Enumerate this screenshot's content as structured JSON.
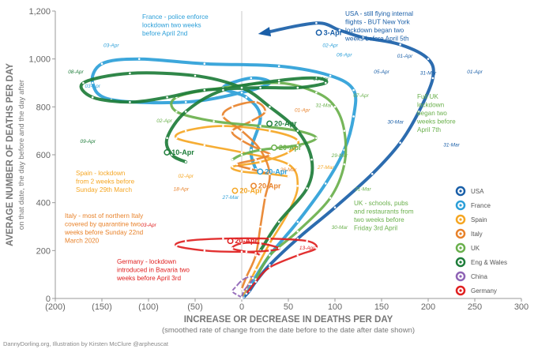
{
  "chart_data": {
    "type": "line",
    "title": "",
    "xlabel": "INCREASE OR DECREASE IN DEATHS PER DAY",
    "xlabel_sub": "(smoothed rate of change from the date before to the date after date shown)",
    "ylabel": "AVERAGE NUMBER OF DEATHS PER DAY",
    "ylabel_sub": "on that date, the day before and the day after",
    "xlim": [
      -200,
      300
    ],
    "ylim": [
      0,
      1200
    ],
    "x_ticks": [
      "(200)",
      "(150)",
      "(100)",
      "(50)",
      "0",
      "50",
      "100",
      "150",
      "200",
      "250",
      "300"
    ],
    "y_ticks": [
      "0",
      "200",
      "400",
      "600",
      "800",
      "1,000",
      "1,200"
    ],
    "grid": false,
    "legend_position": "right",
    "series": [
      {
        "name": "USA",
        "color": "#1a5fa8",
        "points": [
          [
            2,
            5
          ],
          [
            8,
            30
          ],
          [
            15,
            70
          ],
          [
            30,
            140
          ],
          [
            60,
            250
          ],
          [
            100,
            380
          ],
          [
            140,
            520
          ],
          [
            170,
            650
          ],
          [
            190,
            780
          ],
          [
            205,
            920
          ],
          [
            200,
            1000
          ],
          [
            170,
            1060
          ],
          [
            130,
            1090
          ],
          [
            105,
            1120
          ],
          [
            80,
            1150
          ],
          [
            25,
            1110
          ]
        ]
      },
      {
        "name": "France",
        "color": "#2c9fd8",
        "points": [
          [
            1,
            10
          ],
          [
            10,
            60
          ],
          [
            30,
            180
          ],
          [
            60,
            320
          ],
          [
            90,
            480
          ],
          [
            110,
            620
          ],
          [
            120,
            760
          ],
          [
            120,
            870
          ],
          [
            95,
            930
          ],
          [
            40,
            970
          ],
          [
            -40,
            980
          ],
          [
            -110,
            1000
          ],
          [
            -150,
            980
          ],
          [
            -160,
            900
          ],
          [
            -140,
            830
          ],
          [
            -60,
            820
          ],
          [
            0,
            860
          ],
          [
            30,
            900
          ],
          [
            10,
            920
          ],
          [
            -20,
            880
          ],
          [
            5,
            840
          ],
          [
            20,
            760
          ],
          [
            10,
            620
          ],
          [
            15,
            540
          ]
        ]
      },
      {
        "name": "Spain",
        "color": "#f5a623",
        "points": [
          [
            0,
            5
          ],
          [
            5,
            40
          ],
          [
            15,
            120
          ],
          [
            30,
            230
          ],
          [
            50,
            360
          ],
          [
            60,
            470
          ],
          [
            50,
            560
          ],
          [
            0,
            610
          ],
          [
            -40,
            640
          ],
          [
            -70,
            670
          ],
          [
            -60,
            700
          ],
          [
            -20,
            720
          ],
          [
            30,
            700
          ],
          [
            60,
            660
          ],
          [
            50,
            610
          ],
          [
            20,
            570
          ],
          [
            -10,
            550
          ],
          [
            0,
            530
          ],
          [
            30,
            520
          ],
          [
            50,
            510
          ]
        ]
      },
      {
        "name": "Italy",
        "color": "#e8822a",
        "points": [
          [
            0,
            40
          ],
          [
            5,
            90
          ],
          [
            15,
            180
          ],
          [
            20,
            300
          ],
          [
            25,
            420
          ],
          [
            30,
            520
          ],
          [
            20,
            620
          ],
          [
            0,
            700
          ],
          [
            -20,
            760
          ],
          [
            -10,
            800
          ],
          [
            15,
            820
          ],
          [
            25,
            780
          ],
          [
            10,
            740
          ],
          [
            -10,
            700
          ],
          [
            0,
            660
          ],
          [
            20,
            620
          ],
          [
            30,
            600
          ],
          [
            15,
            580
          ],
          [
            -5,
            560
          ],
          [
            10,
            540
          ],
          [
            30,
            520
          ]
        ]
      },
      {
        "name": "UK",
        "color": "#6ab04c",
        "points": [
          [
            15,
            80
          ],
          [
            30,
            180
          ],
          [
            60,
            280
          ],
          [
            95,
            420
          ],
          [
            110,
            560
          ],
          [
            110,
            700
          ],
          [
            100,
            800
          ],
          [
            80,
            860
          ],
          [
            40,
            900
          ],
          [
            -20,
            880
          ],
          [
            -70,
            840
          ],
          [
            -70,
            780
          ],
          [
            -30,
            740
          ],
          [
            20,
            720
          ],
          [
            60,
            700
          ],
          [
            80,
            670
          ],
          [
            60,
            640
          ],
          [
            20,
            620
          ],
          [
            0,
            600
          ],
          [
            -10,
            580
          ]
        ]
      },
      {
        "name": "Eng & Wales",
        "color": "#1e7d3a",
        "points": [
          [
            20,
            200
          ],
          [
            40,
            320
          ],
          [
            70,
            460
          ],
          [
            75,
            580
          ],
          [
            60,
            700
          ],
          [
            30,
            800
          ],
          [
            0,
            880
          ],
          [
            -50,
            930
          ],
          [
            -120,
            940
          ],
          [
            -170,
            900
          ],
          [
            -160,
            840
          ],
          [
            -120,
            820
          ],
          [
            -80,
            840
          ],
          [
            -40,
            870
          ],
          [
            20,
            880
          ],
          [
            60,
            880
          ],
          [
            90,
            900
          ],
          [
            80,
            920
          ],
          [
            40,
            910
          ],
          [
            -20,
            870
          ],
          [
            -60,
            780
          ],
          [
            -80,
            670
          ],
          [
            -75,
            600
          ],
          [
            -60,
            570
          ]
        ]
      },
      {
        "name": "China",
        "color": "#8e63b5",
        "points": [
          [
            0,
            0
          ],
          [
            2,
            30
          ],
          [
            8,
            60
          ],
          [
            12,
            85
          ],
          [
            8,
            90
          ],
          [
            0,
            75
          ],
          [
            -6,
            50
          ],
          [
            -10,
            30
          ],
          [
            -5,
            15
          ],
          [
            0,
            5
          ]
        ]
      },
      {
        "name": "Germany",
        "color": "#e02020",
        "points": [
          [
            5,
            20
          ],
          [
            15,
            70
          ],
          [
            30,
            130
          ],
          [
            60,
            180
          ],
          [
            80,
            210
          ],
          [
            70,
            240
          ],
          [
            30,
            250
          ],
          [
            -20,
            250
          ],
          [
            -60,
            240
          ],
          [
            -70,
            220
          ],
          [
            -40,
            200
          ],
          [
            0,
            195
          ],
          [
            30,
            200
          ],
          [
            40,
            210
          ],
          [
            20,
            230
          ],
          [
            0,
            230
          ],
          [
            -10,
            210
          ],
          [
            5,
            195
          ],
          [
            15,
            190
          ],
          [
            20,
            180
          ]
        ]
      }
    ],
    "annotations": [
      {
        "text": "France - police enforce",
        "series": "France"
      },
      {
        "text": "lockdown two weeks",
        "series": "France"
      },
      {
        "text": "before April 2nd",
        "series": "France"
      },
      {
        "text": "USA - still flying internal",
        "series": "USA"
      },
      {
        "text": "flights - BUT New York",
        "series": "USA"
      },
      {
        "text": "lockdown began two",
        "series": "USA"
      },
      {
        "text": "weeks before April 5th",
        "series": "USA"
      },
      {
        "text": "Full UK",
        "series": "UK"
      },
      {
        "text": "lockdown",
        "series": "UK"
      },
      {
        "text": "began two",
        "series": "UK"
      },
      {
        "text": "weeks before",
        "series": "UK"
      },
      {
        "text": "April 7th",
        "series": "UK"
      },
      {
        "text": "Spain - lockdown",
        "series": "Spain"
      },
      {
        "text": "from 2 weeks before",
        "series": "Spain"
      },
      {
        "text": "Sunday 29th March",
        "series": "Spain"
      },
      {
        "text": "Italy - most of northern Italy",
        "series": "Italy"
      },
      {
        "text": "covered by quarantine two",
        "series": "Italy"
      },
      {
        "text": "weeks before Sunday 22nd",
        "series": "Italy"
      },
      {
        "text": "March 2020",
        "series": "Italy"
      },
      {
        "text": "UK - schools, pubs",
        "series": "UK"
      },
      {
        "text": "and restaurants from",
        "series": "UK"
      },
      {
        "text": "two weeks before",
        "series": "UK"
      },
      {
        "text": "Friday 3rd April",
        "series": "UK"
      },
      {
        "text": "Germany - lockdown",
        "series": "Germany"
      },
      {
        "text": "introduced in Bavaria two",
        "series": "Germany"
      },
      {
        "text": "weeks before April 3rd",
        "series": "Germany"
      }
    ],
    "bold_labels": [
      {
        "text": "3-Apr",
        "x": 98,
        "y": 1100,
        "color": "#1a5fa8"
      },
      {
        "text": "10-Apr",
        "x": -65,
        "y": 600,
        "color": "#1e7d3a"
      },
      {
        "text": "20-Apr",
        "x": 45,
        "y": 720,
        "color": "#1e7d3a"
      },
      {
        "text": "20-Apr",
        "x": 50,
        "y": 620,
        "color": "#6ab04c"
      },
      {
        "text": "20-Apr",
        "x": 35,
        "y": 520,
        "color": "#2c9fd8"
      },
      {
        "text": "20-Apr",
        "x": 28,
        "y": 460,
        "color": "#e8822a"
      },
      {
        "text": "20-Apr",
        "x": 8,
        "y": 440,
        "color": "#f5a623"
      },
      {
        "text": "20-Apr",
        "x": 3,
        "y": 230,
        "color": "#e02020"
      }
    ],
    "date_labels": [
      {
        "text": "03-Apr",
        "x": -140,
        "y": 1050,
        "color": "#2c9fd8"
      },
      {
        "text": "02-Apr",
        "x": 95,
        "y": 1050,
        "color": "#2c9fd8"
      },
      {
        "text": "06-Apr",
        "x": 110,
        "y": 1010,
        "color": "#2c9fd8"
      },
      {
        "text": "01-Apr",
        "x": 175,
        "y": 1005,
        "color": "#1a5fa8"
      },
      {
        "text": "05-Apr",
        "x": 150,
        "y": 940,
        "color": "#1a5fa8"
      },
      {
        "text": "06-Apr",
        "x": 85,
        "y": 910,
        "color": "#1e7d3a"
      },
      {
        "text": "08-Apr",
        "x": -178,
        "y": 940,
        "color": "#1e7d3a"
      },
      {
        "text": "01-Apr",
        "x": 250,
        "y": 940,
        "color": "#1a5fa8"
      },
      {
        "text": "31-Mar",
        "x": 200,
        "y": 935,
        "color": "#1a5fa8"
      },
      {
        "text": "03-Apr",
        "x": -160,
        "y": 880,
        "color": "#2c9fd8"
      },
      {
        "text": "07-Apr",
        "x": 128,
        "y": 840,
        "color": "#6ab04c"
      },
      {
        "text": "31-Mar",
        "x": 88,
        "y": 800,
        "color": "#6ab04c"
      },
      {
        "text": "01-Apr",
        "x": 65,
        "y": 780,
        "color": "#e8822a"
      },
      {
        "text": "30-Mar",
        "x": 165,
        "y": 730,
        "color": "#1a5fa8"
      },
      {
        "text": "02-Apr",
        "x": -83,
        "y": 735,
        "color": "#6ab04c"
      },
      {
        "text": "09-Apr",
        "x": -165,
        "y": 650,
        "color": "#1e7d3a"
      },
      {
        "text": "31-Mar",
        "x": 225,
        "y": 635,
        "color": "#1a5fa8"
      },
      {
        "text": "29-Mar",
        "x": 105,
        "y": 590,
        "color": "#6ab04c"
      },
      {
        "text": "27-Mar",
        "x": 90,
        "y": 540,
        "color": "#f5a623"
      },
      {
        "text": "26-Mar",
        "x": 50,
        "y": 530,
        "color": "#e8822a"
      },
      {
        "text": "02-Apr",
        "x": -60,
        "y": 505,
        "color": "#f5a623"
      },
      {
        "text": "18-Apr",
        "x": -65,
        "y": 450,
        "color": "#e8822a"
      },
      {
        "text": "31-Mar",
        "x": 130,
        "y": 450,
        "color": "#6ab04c"
      },
      {
        "text": "27-Mar",
        "x": -12,
        "y": 415,
        "color": "#2c9fd8"
      },
      {
        "text": "03-Apr",
        "x": -100,
        "y": 300,
        "color": "#e02020"
      },
      {
        "text": "30-Mar",
        "x": 105,
        "y": 290,
        "color": "#6ab04c"
      },
      {
        "text": "13-Apr",
        "x": 70,
        "y": 205,
        "color": "#e02020"
      }
    ]
  },
  "credit": "DannyDorling.org, Illustration by Kirsten McClure @arpheuscat"
}
